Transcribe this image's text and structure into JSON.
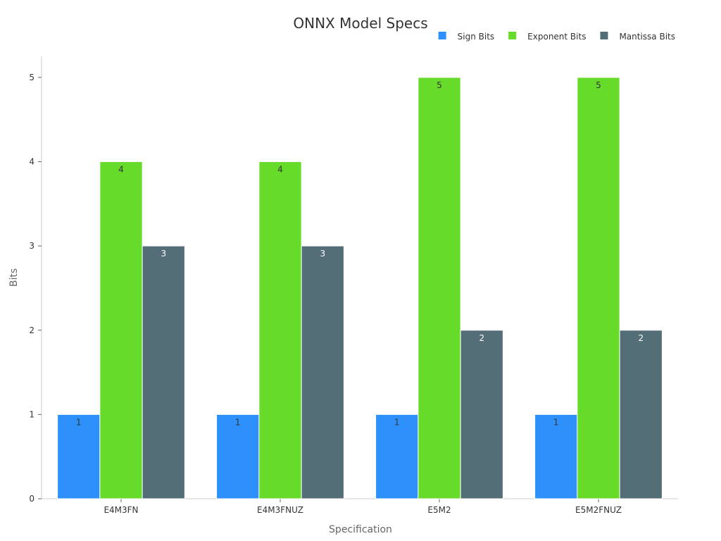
{
  "chart_data": {
    "type": "bar",
    "title": "ONNX Model Specs",
    "xlabel": "Specification",
    "ylabel": "Bits",
    "categories": [
      "E4M3FN",
      "E4M3FNUZ",
      "E5M2",
      "E5M2FNUZ"
    ],
    "series": [
      {
        "name": "Sign Bits",
        "values": [
          1,
          1,
          1,
          1
        ],
        "color": "#2e90fa",
        "label_color": "#333333"
      },
      {
        "name": "Exponent Bits",
        "values": [
          4,
          4,
          5,
          5
        ],
        "color": "#66db2a",
        "label_color": "#333333"
      },
      {
        "name": "Mantissa Bits",
        "values": [
          3,
          3,
          2,
          2
        ],
        "color": "#546e78",
        "label_color": "#ffffff"
      }
    ],
    "ylim": [
      0,
      5.25
    ],
    "yticks": [
      0,
      1,
      2,
      3,
      4,
      5
    ],
    "grid": false,
    "legend_position": "top-right",
    "axis_color": "#cccccc"
  }
}
